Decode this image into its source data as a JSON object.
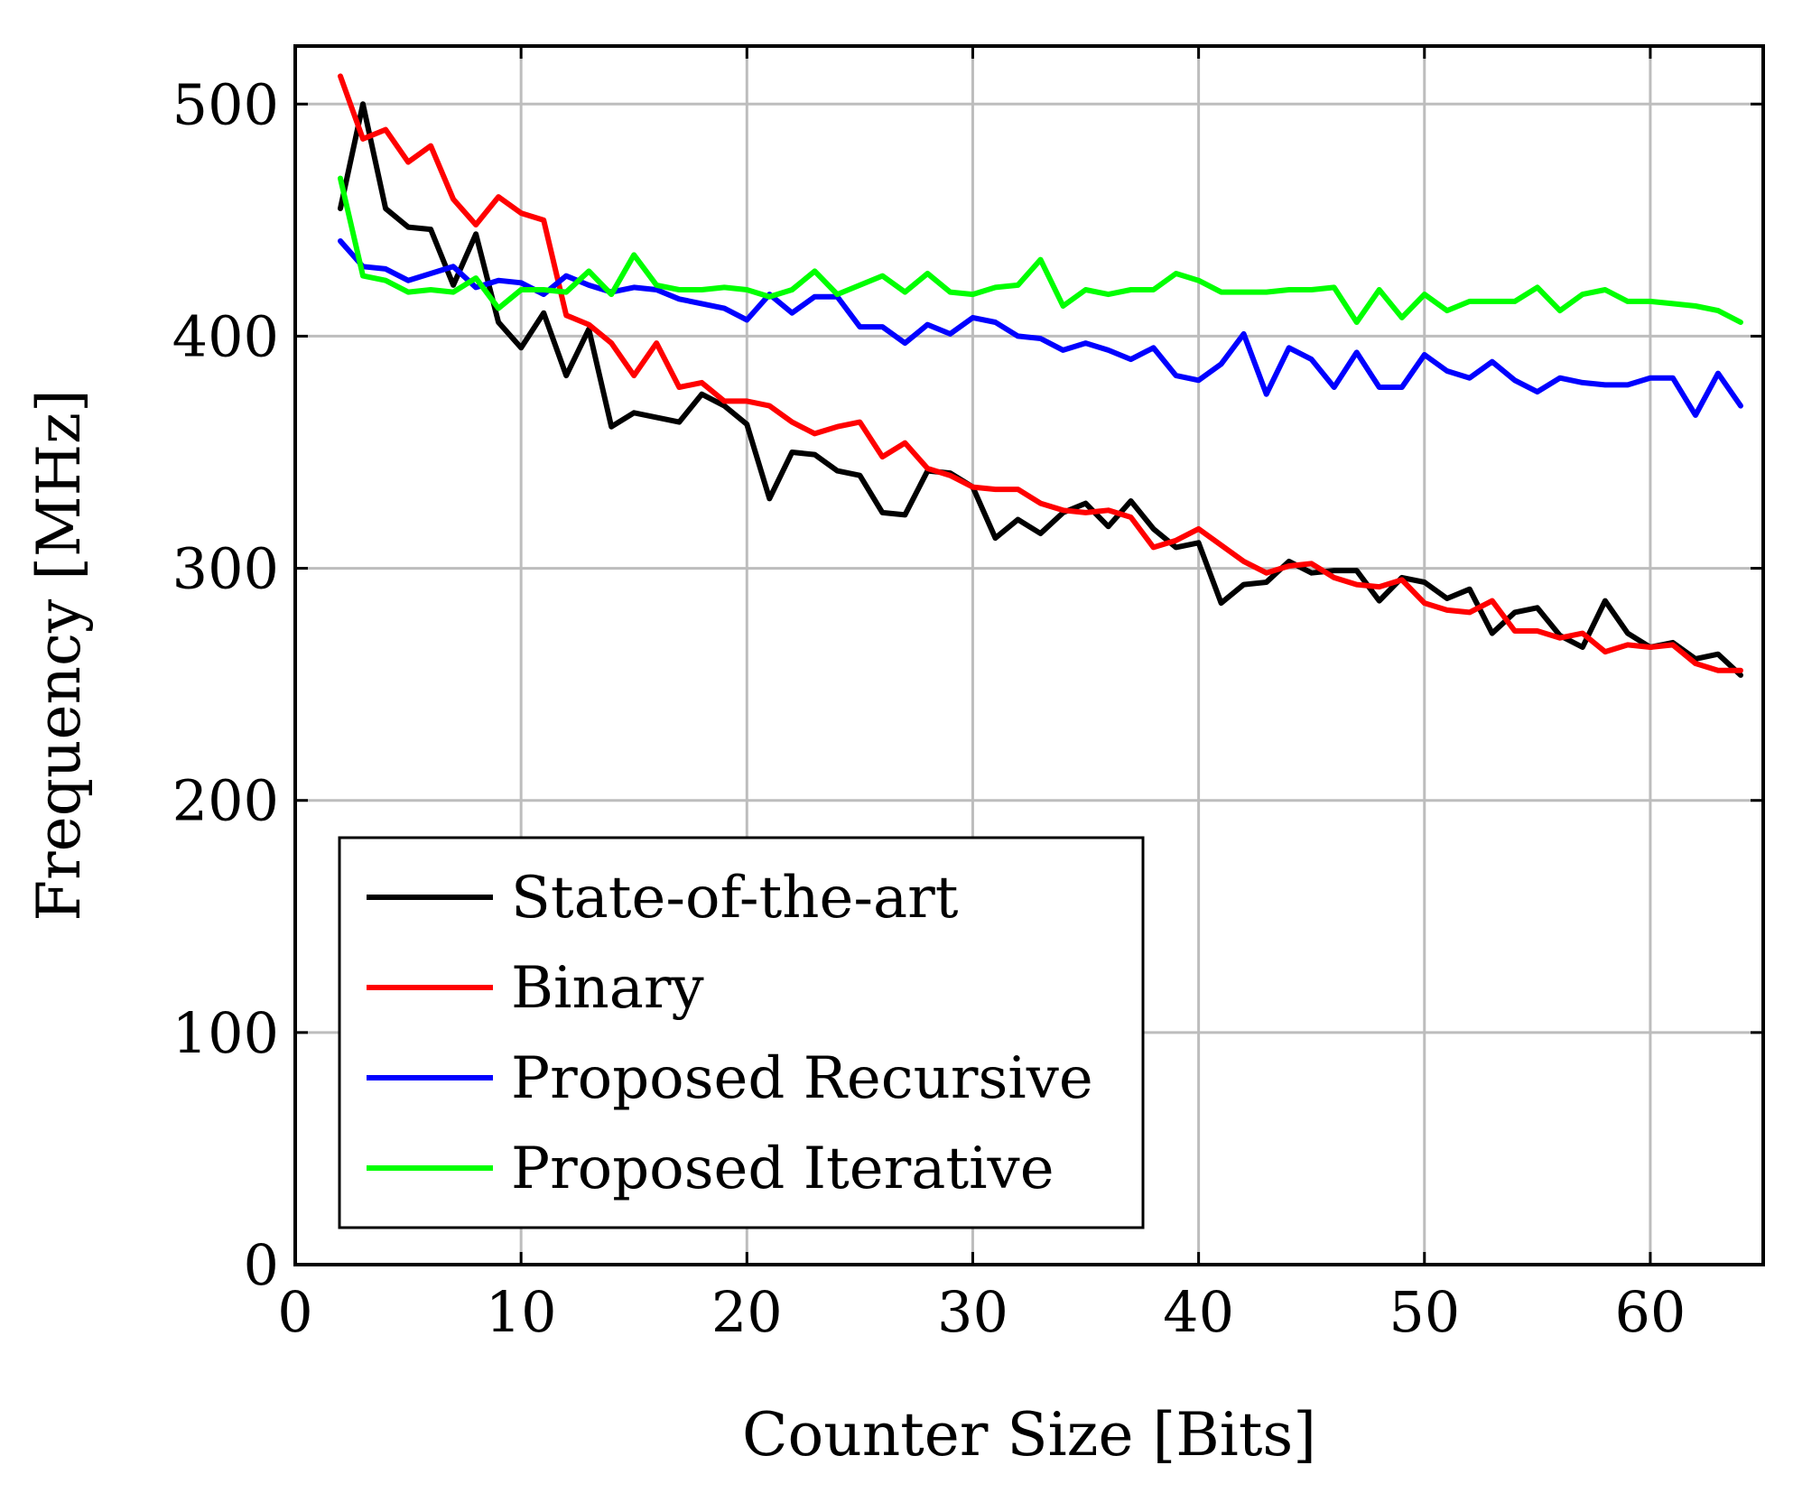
{
  "chart_data": {
    "type": "line",
    "title": "",
    "xlabel": "Counter Size [Bits]",
    "ylabel": "Frequency [MHz]",
    "xlim": [
      0,
      65
    ],
    "ylim": [
      0,
      525
    ],
    "xticks": [
      0,
      10,
      20,
      30,
      40,
      50,
      60
    ],
    "yticks": [
      0,
      100,
      200,
      300,
      400,
      500
    ],
    "grid": true,
    "legend_position": "bottom-left",
    "x": [
      2,
      3,
      4,
      5,
      6,
      7,
      8,
      9,
      10,
      11,
      12,
      13,
      14,
      15,
      16,
      17,
      18,
      19,
      20,
      21,
      22,
      23,
      24,
      25,
      26,
      27,
      28,
      29,
      30,
      31,
      32,
      33,
      34,
      35,
      36,
      37,
      38,
      39,
      40,
      41,
      42,
      43,
      44,
      45,
      46,
      47,
      48,
      49,
      50,
      51,
      52,
      53,
      54,
      55,
      56,
      57,
      58,
      59,
      60,
      61,
      62,
      63,
      64
    ],
    "series": [
      {
        "name": "State-of-the-art",
        "color": "#000000",
        "values": [
          455,
          500,
          455,
          447,
          446,
          422,
          444,
          406,
          395,
          410,
          383,
          403,
          361,
          367,
          365,
          363,
          375,
          370,
          362,
          330,
          350,
          349,
          342,
          340,
          324,
          323,
          342,
          341,
          335,
          313,
          321,
          315,
          324,
          328,
          318,
          329,
          317,
          309,
          311,
          285,
          293,
          294,
          303,
          298,
          299,
          299,
          286,
          296,
          294,
          287,
          291,
          272,
          281,
          283,
          271,
          266,
          286,
          272,
          266,
          268,
          261,
          263,
          254
        ],
        "values_note": ""
      },
      {
        "name": "Binary",
        "color": "#ff0000",
        "values": [
          512,
          485,
          489,
          475,
          482,
          459,
          448,
          460,
          453,
          450,
          409,
          405,
          397,
          383,
          397,
          378,
          380,
          372,
          372,
          370,
          363,
          358,
          361,
          363,
          348,
          354,
          343,
          340,
          335,
          334,
          334,
          328,
          325,
          324,
          325,
          322,
          309,
          312,
          317,
          310,
          303,
          298,
          301,
          302,
          296,
          293,
          292,
          295,
          285,
          282,
          281,
          286,
          273,
          273,
          270,
          272,
          264,
          267,
          266,
          267,
          259,
          256,
          256
        ],
        "values_note": ""
      },
      {
        "name": "Proposed Recursive",
        "color": "#0000ff",
        "values": [
          441,
          430,
          429,
          424,
          427,
          430,
          421,
          424,
          423,
          418,
          426,
          422,
          419,
          421,
          420,
          416,
          414,
          412,
          407,
          418,
          410,
          417,
          417,
          404,
          404,
          397,
          405,
          401,
          408,
          406,
          400,
          399,
          394,
          397,
          394,
          390,
          395,
          383,
          381,
          388,
          401,
          375,
          395,
          390,
          378,
          393,
          378,
          378,
          392,
          385,
          382,
          389,
          381,
          376,
          382,
          380,
          379,
          379,
          382,
          382,
          366,
          384,
          370
        ]
      },
      {
        "name": "Proposed Iterative",
        "color": "#00ff00",
        "values": [
          468,
          426,
          424,
          419,
          420,
          419,
          425,
          412,
          420,
          420,
          419,
          428,
          418,
          435,
          422,
          420,
          420,
          421,
          420,
          417,
          420,
          428,
          418,
          422,
          426,
          419,
          427,
          419,
          418,
          421,
          422,
          433,
          413,
          420,
          418,
          420,
          420,
          427,
          424,
          419,
          419,
          419,
          420,
          420,
          421,
          406,
          420,
          408,
          418,
          411,
          415,
          415,
          415,
          421,
          411,
          418,
          420,
          415,
          415,
          414,
          413,
          411,
          406
        ]
      }
    ]
  }
}
